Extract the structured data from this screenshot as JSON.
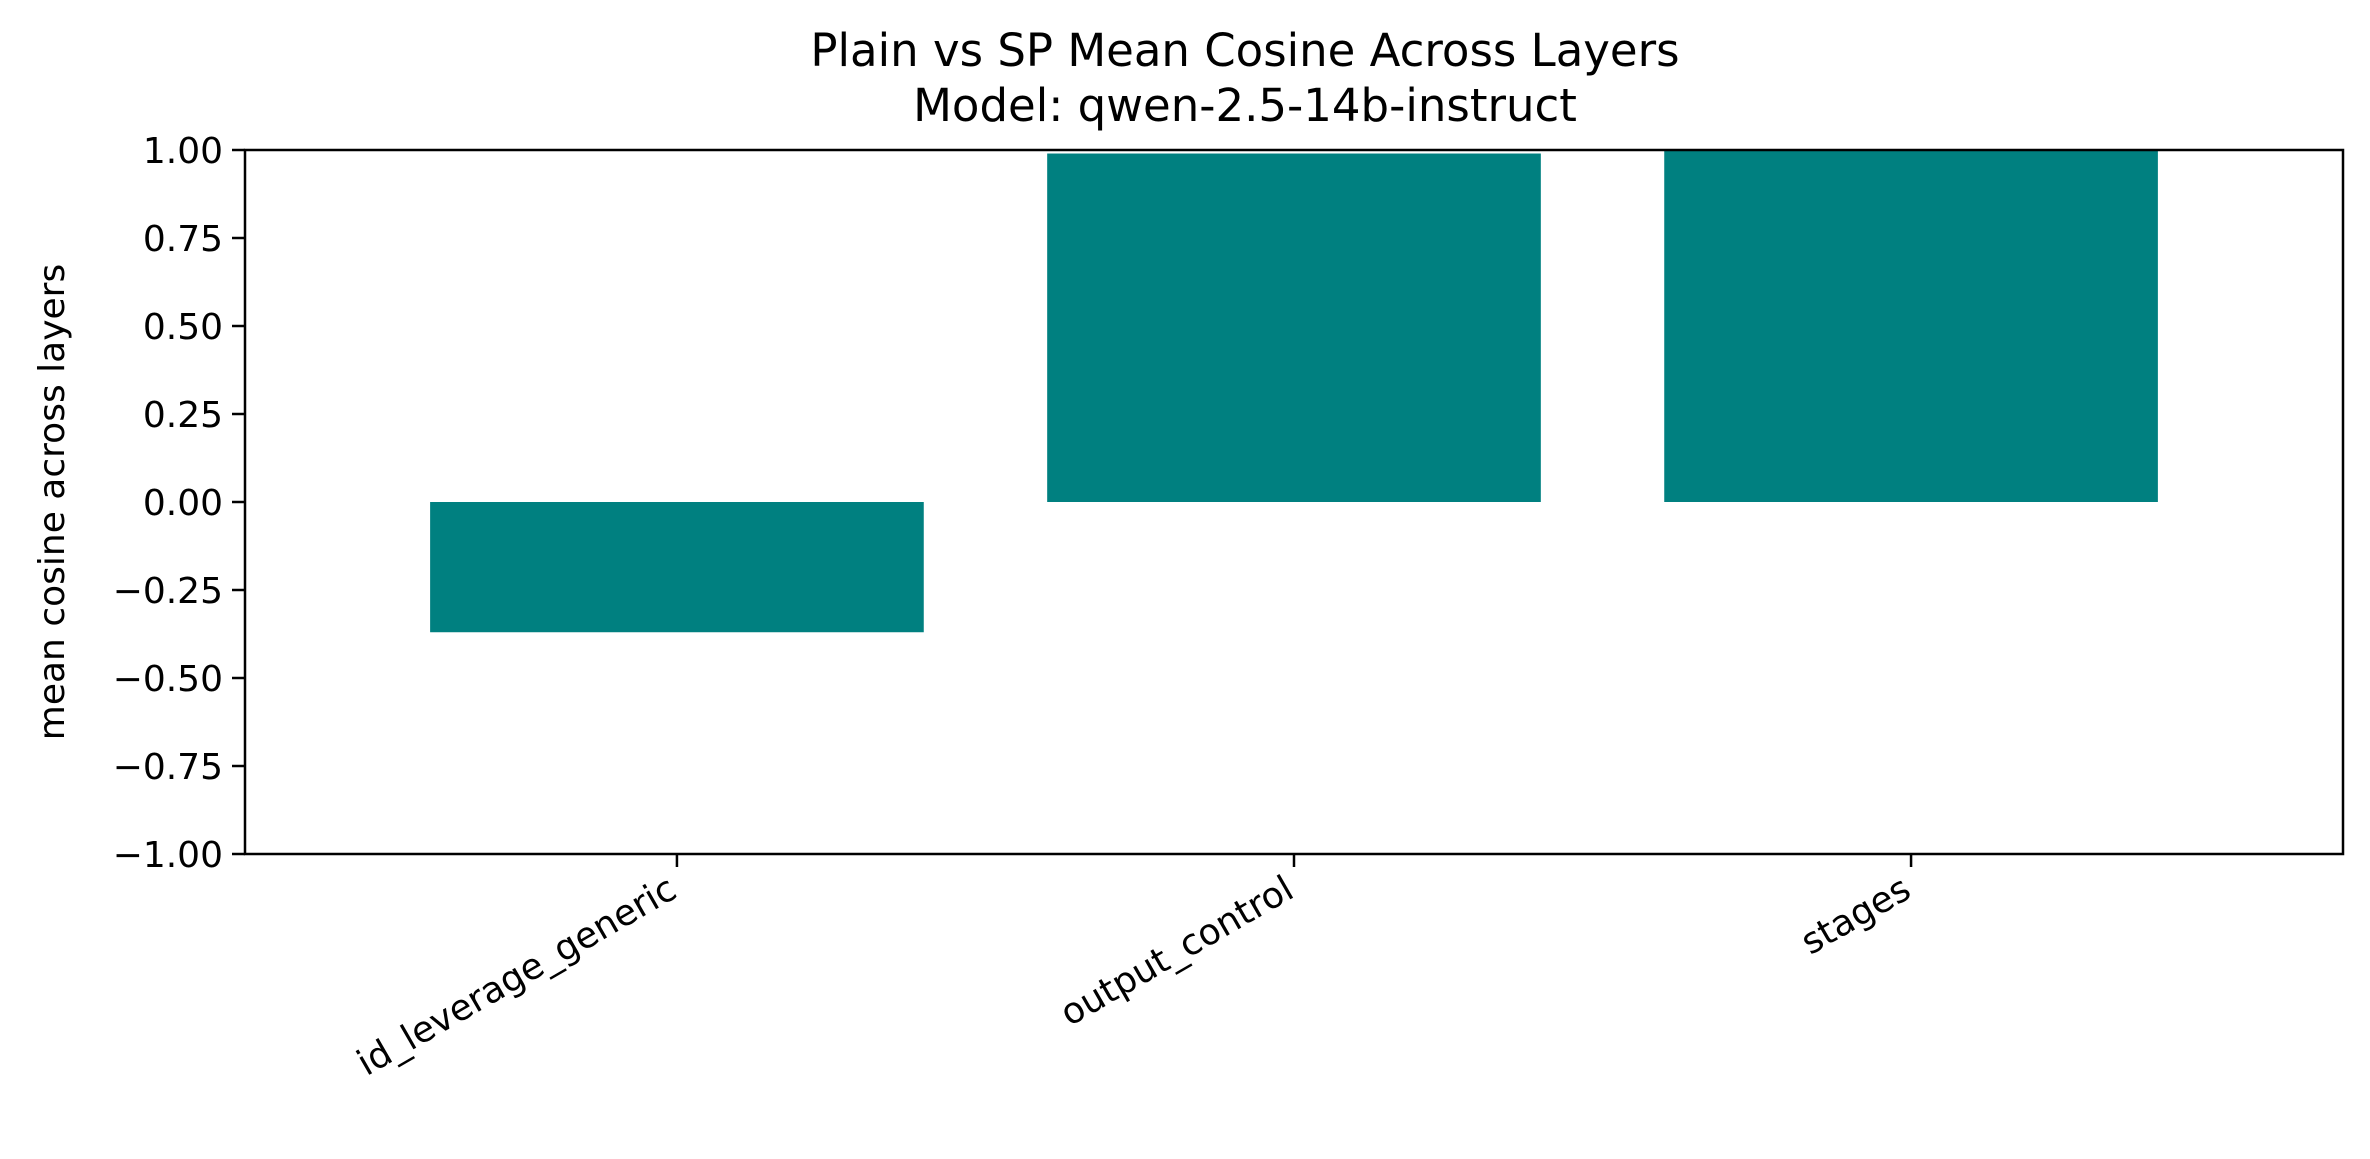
{
  "chart_data": {
    "type": "bar",
    "title": "Plain vs SP Mean Cosine Across Layers",
    "subtitle": "Model: qwen-2.5-14b-instruct",
    "xlabel": "",
    "ylabel": "mean cosine across layers",
    "categories": [
      "id_leverage_generic",
      "output_control",
      "stages"
    ],
    "values": [
      -0.37,
      0.99,
      1.0
    ],
    "ylim": [
      -1.0,
      1.0
    ],
    "yticks": [
      -1.0,
      -0.75,
      -0.5,
      -0.25,
      0.0,
      0.25,
      0.5,
      0.75,
      1.0
    ],
    "ytick_labels": [
      "−1.00",
      "−0.75",
      "−0.50",
      "−0.25",
      "0.00",
      "0.25",
      "0.50",
      "0.75",
      "1.00"
    ],
    "grid": false,
    "legend": "none",
    "bar_color": "#008080"
  }
}
